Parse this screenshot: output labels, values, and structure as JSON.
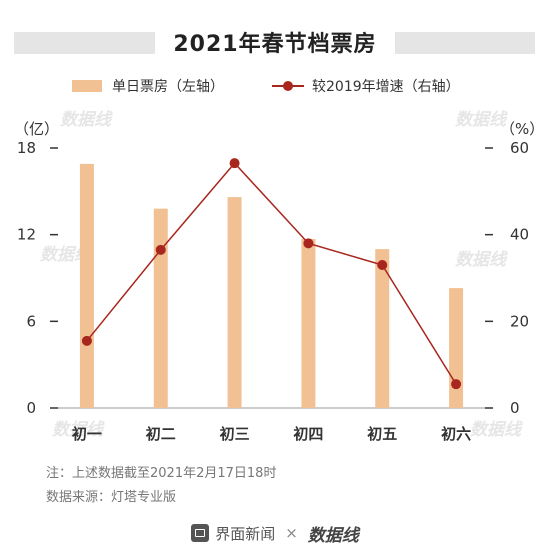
{
  "chart_data": {
    "type": "bar",
    "title": "2021年春节档票房",
    "categories": [
      "初一",
      "初二",
      "初三",
      "初四",
      "初五",
      "初六"
    ],
    "series": [
      {
        "name": "单日票房（左轴）",
        "type": "bar",
        "axis": "left",
        "values": [
          16.9,
          13.8,
          14.6,
          11.7,
          11.0,
          8.3
        ]
      },
      {
        "name": "较2019年增速（右轴）",
        "type": "line",
        "axis": "right",
        "values": [
          15.5,
          36.5,
          56.5,
          38,
          33,
          5.5
        ]
      }
    ],
    "y_left": {
      "unit": "（亿）",
      "ylim": [
        0,
        18
      ],
      "ticks": [
        0,
        6,
        12,
        18
      ]
    },
    "y_right": {
      "unit": "（%）",
      "ylim": [
        0,
        60
      ],
      "ticks": [
        0,
        20,
        40,
        60
      ]
    },
    "grid": false,
    "legend_position": "top",
    "colors": {
      "bar": "#f2c193",
      "line": "#a8261e"
    }
  },
  "notes": {
    "note1": "注：上述数据截至2021年2月17日18时",
    "note2": "数据来源：灯塔专业版"
  },
  "footer": {
    "brand1": "界面新闻",
    "separator": "×",
    "brand2": "数据线"
  },
  "watermark": "数据线"
}
